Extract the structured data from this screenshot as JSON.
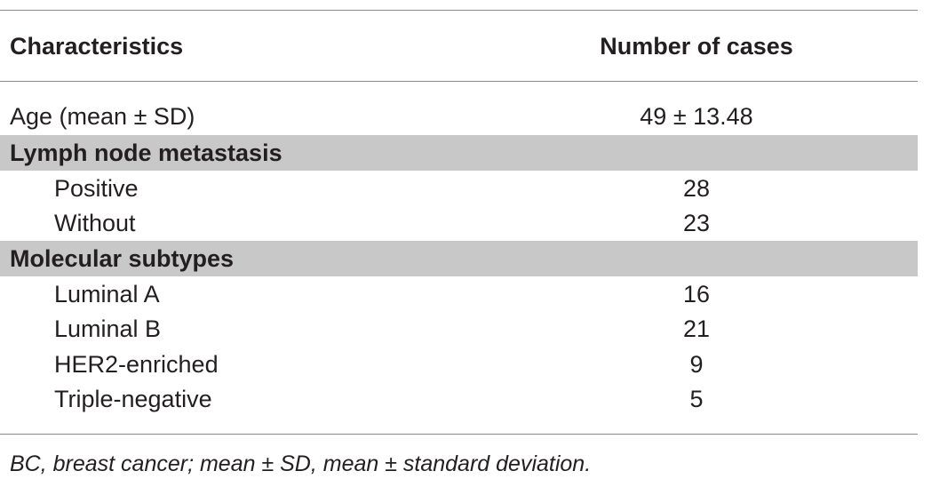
{
  "table": {
    "headers": {
      "characteristics": "Characteristics",
      "number_of_cases": "Number of cases"
    },
    "rows": [
      {
        "label": "Age (mean ± SD)",
        "value": "49 ± 13.48",
        "kind": "item"
      },
      {
        "label": "Lymph node metastasis",
        "value": "",
        "kind": "group"
      },
      {
        "label": "Positive",
        "value": "28",
        "kind": "subitem"
      },
      {
        "label": "Without",
        "value": "23",
        "kind": "subitem"
      },
      {
        "label": "Molecular subtypes",
        "value": "",
        "kind": "group"
      },
      {
        "label": "Luminal A",
        "value": "16",
        "kind": "subitem"
      },
      {
        "label": "Luminal B",
        "value": "21",
        "kind": "subitem"
      },
      {
        "label": "HER2-enriched",
        "value": "9",
        "kind": "subitem"
      },
      {
        "label": "Triple-negative",
        "value": "5",
        "kind": "subitem"
      }
    ],
    "footnote": "BC, breast cancer; mean ± SD, mean ± standard deviation."
  },
  "colors": {
    "group_row_background": "#c8c8c8",
    "rule": "#8a8a8a",
    "text": "#231f20"
  }
}
